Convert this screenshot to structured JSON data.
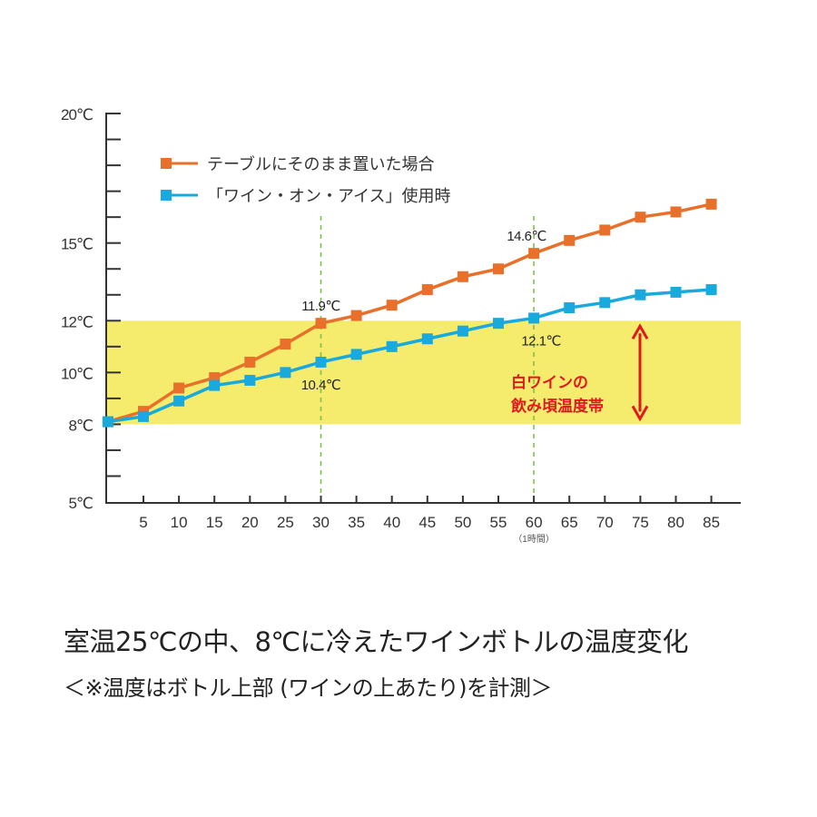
{
  "chart_data": {
    "type": "line",
    "title": "室温25℃の中、8℃に冷えたワインボトルの温度変化",
    "subtitle": "＜※温度はボトル上部 (ワインの上あたり)を計測＞",
    "xlabel": "",
    "ylabel": "",
    "x": [
      0,
      5,
      10,
      15,
      20,
      25,
      30,
      35,
      40,
      45,
      50,
      55,
      60,
      65,
      70,
      75,
      80,
      85
    ],
    "x_tick_labels": [
      "5",
      "10",
      "15",
      "20",
      "25",
      "30",
      "35",
      "40",
      "45",
      "50",
      "55",
      "60",
      "65",
      "70",
      "75",
      "80",
      "85"
    ],
    "x_tick_note": {
      "at": 60,
      "text": "（1時間）"
    },
    "y_tick_labels": [
      {
        "value": 20,
        "label": "20℃"
      },
      {
        "value": 15,
        "label": "15℃"
      },
      {
        "value": 12,
        "label": "12℃"
      },
      {
        "value": 10,
        "label": "10℃"
      },
      {
        "value": 8,
        "label": "8℃"
      },
      {
        "value": 5,
        "label": "5℃"
      }
    ],
    "ylim": [
      5,
      20
    ],
    "xlim": [
      0,
      88
    ],
    "grid": false,
    "legend_position": "top-left",
    "series": [
      {
        "name": "テーブルにそのまま置いた場合",
        "color": "#e8702a",
        "values": [
          8.1,
          8.5,
          9.4,
          9.8,
          10.4,
          11.1,
          11.9,
          12.2,
          12.6,
          13.2,
          13.7,
          14.0,
          14.6,
          15.1,
          15.5,
          16.0,
          16.2,
          16.5
        ]
      },
      {
        "name": "「ワイン・オン・アイス」使用時",
        "color": "#1aa9dc",
        "values": [
          8.1,
          8.3,
          8.9,
          9.5,
          9.7,
          10.0,
          10.4,
          10.7,
          11.0,
          11.3,
          11.6,
          11.9,
          12.1,
          12.5,
          12.7,
          13.0,
          13.1,
          13.2
        ]
      }
    ],
    "band": {
      "from": 8,
      "to": 12,
      "color": "#f5ec6e",
      "label": [
        "白ワインの",
        "飲み頃温度帯"
      ],
      "label_color": "#e0191e"
    },
    "reference_lines": [
      {
        "x": 30,
        "color": "#7cc04b"
      },
      {
        "x": 60,
        "color": "#7cc04b"
      }
    ],
    "annotations": [
      {
        "x": 30,
        "series": 0,
        "text": "11.9℃"
      },
      {
        "x": 30,
        "series": 1,
        "text": "10.4℃"
      },
      {
        "x": 60,
        "series": 0,
        "text": "14.6℃"
      },
      {
        "x": 60,
        "series": 1,
        "text": "12.1℃"
      }
    ]
  },
  "captions": {
    "title": "室温25℃の中、8℃に冷えたワインボトルの温度変化",
    "subtitle": "＜※温度はボトル上部 (ワインの上あたり)を計測＞"
  }
}
